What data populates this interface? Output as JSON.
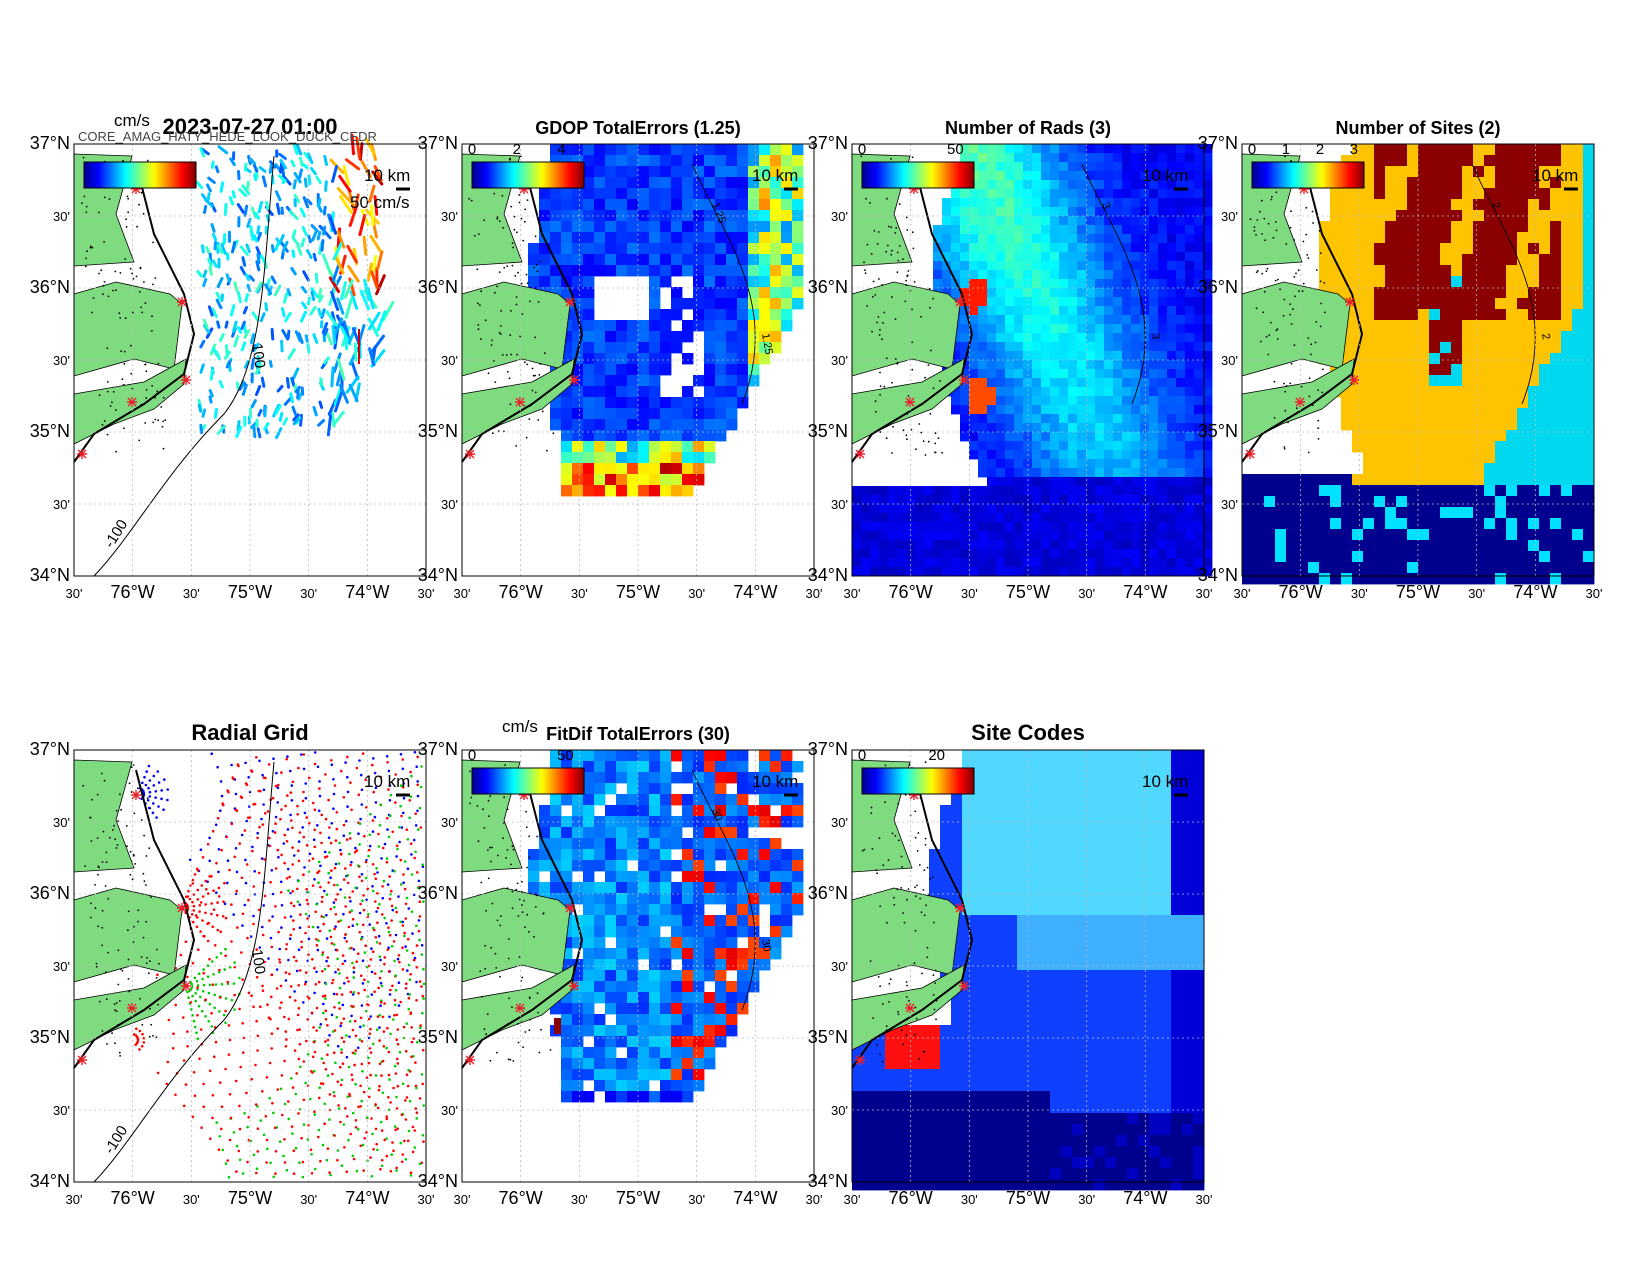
{
  "figure": {
    "timestamp": "2023-07-27 01:00",
    "overlapped_label": "CORE_AMAG_HATY_HEDE_LOOK_DUCK_CEDR",
    "lat_labels": [
      "37°N",
      "30'",
      "36°N",
      "30'",
      "35°N",
      "30'",
      "34°N"
    ],
    "lon_labels": [
      "30'",
      "76°W",
      "30'",
      "75°W",
      "30'",
      "74°W",
      "30'"
    ],
    "scale_label": "10 km",
    "contour_label": "-100",
    "contour_label_2": "100",
    "colors": {
      "land": "#7fdb7f",
      "site_marker": "#e8202a",
      "grid": "#bbbbbb"
    }
  },
  "panels": [
    {
      "id": "vel",
      "title": "2023-07-27 01:00",
      "cbar_unit": "cm/s",
      "cbar_ticks": [],
      "ref_vector_label": "50 cm/s"
    },
    {
      "id": "gdop",
      "title": "GDOP TotalErrors (1.25)",
      "cbar_unit": "",
      "cbar_ticks": [
        "0",
        "2",
        "4"
      ],
      "contour_labels": [
        "1.25"
      ]
    },
    {
      "id": "rads",
      "title": "Number of Rads (3)",
      "cbar_unit": "",
      "cbar_ticks": [
        "0",
        "50"
      ],
      "contour_labels": [
        "3"
      ]
    },
    {
      "id": "sites",
      "title": "Number of Sites (2)",
      "cbar_unit": "",
      "cbar_ticks": [
        "0",
        "1",
        "2",
        "3"
      ],
      "contour_labels": [
        "2"
      ]
    },
    {
      "id": "radgrid",
      "title": "Radial Grid",
      "cbar_unit": "",
      "cbar_ticks": []
    },
    {
      "id": "fitdif",
      "title": "FitDif TotalErrors (30)",
      "cbar_unit": "cm/s",
      "cbar_ticks": [
        "0",
        "50"
      ],
      "contour_labels": [
        "30"
      ]
    },
    {
      "id": "codes",
      "title": "Site Codes",
      "cbar_unit": "",
      "cbar_ticks": [
        "0",
        "20"
      ]
    }
  ]
}
